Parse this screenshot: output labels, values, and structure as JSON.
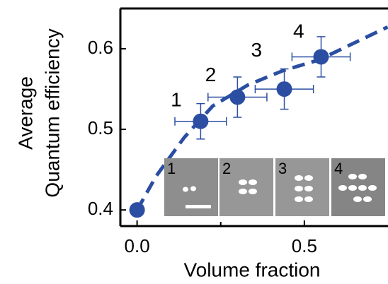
{
  "chart_data": {
    "type": "scatter",
    "xlabel": "Volume fraction",
    "ylabel": [
      "Average",
      "Quantum efficiency"
    ],
    "xlim": [
      -0.05,
      0.75
    ],
    "ylim": [
      0.38,
      0.65
    ],
    "xticks": [
      {
        "value": 0,
        "label": "0.0"
      },
      0.5
    ],
    "xminorticks": [
      0.25
    ],
    "yticks": [
      0.4,
      0.5,
      0.6
    ],
    "series": [
      {
        "color": "#2b4ea2",
        "x": [
          0,
          0.19,
          0.3,
          0.44,
          0.55
        ],
        "values": [
          0.4,
          0.51,
          0.54,
          0.55,
          0.59
        ],
        "xerr": [
          null,
          0.077,
          0.088,
          0.087,
          0.087
        ],
        "yerr": [
          null,
          0.022,
          0.025,
          0.025,
          0.025
        ]
      }
    ],
    "fit": {
      "color": "#2b4ea2",
      "x": [
        0,
        0.057,
        0.141,
        0.226,
        0.331,
        0.437,
        0.542,
        0.749
      ],
      "values": [
        0.4,
        0.442,
        0.49,
        0.529,
        0.555,
        0.573,
        0.586,
        0.627
      ]
    },
    "annotations": [
      {
        "text": "1",
        "x": 0.117,
        "y": 0.535
      },
      {
        "text": "2",
        "x": 0.22,
        "y": 0.566
      },
      {
        "text": "3",
        "x": 0.357,
        "y": 0.597
      },
      {
        "text": "4",
        "x": 0.483,
        "y": 0.62
      }
    ],
    "inset_labels": [
      "1",
      "2",
      "3",
      "4"
    ]
  }
}
